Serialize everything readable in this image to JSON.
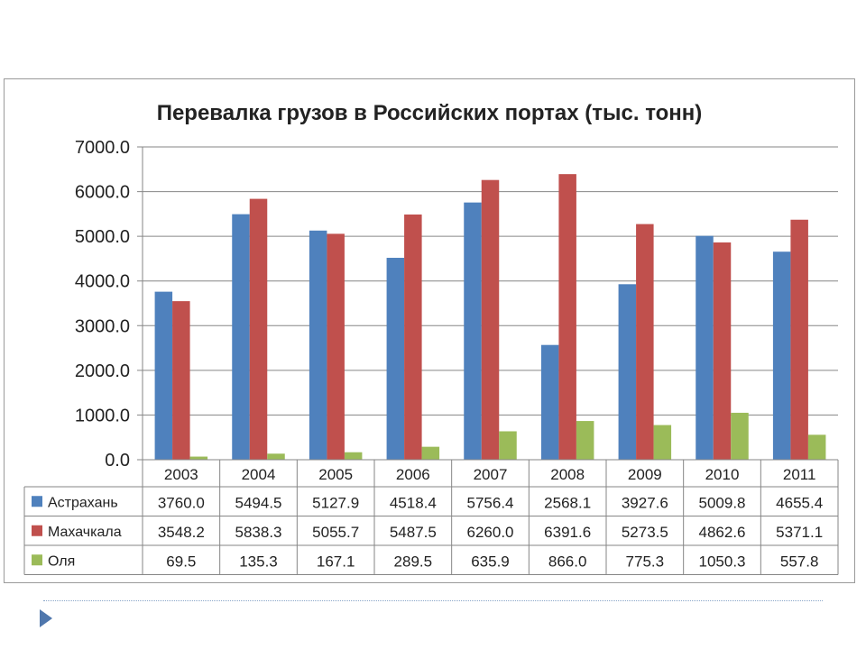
{
  "chart_data": {
    "type": "bar",
    "title": "Перевалка грузов в Российских портах (тыс. тонн)",
    "categories": [
      "2003",
      "2004",
      "2005",
      "2006",
      "2007",
      "2008",
      "2009",
      "2010",
      "2011"
    ],
    "series": [
      {
        "name": "Астрахань",
        "color": "#4f81bd",
        "values": [
          3760.0,
          5494.5,
          5127.9,
          4518.4,
          5756.4,
          2568.1,
          3927.6,
          5009.8,
          4655.4
        ]
      },
      {
        "name": "Махачкала",
        "color": "#c0504d",
        "values": [
          3548.2,
          5838.3,
          5055.7,
          5487.5,
          6260.0,
          6391.6,
          5273.5,
          4862.6,
          5371.1
        ]
      },
      {
        "name": "Оля",
        "color": "#9bbb59",
        "values": [
          69.5,
          135.3,
          167.1,
          289.5,
          635.9,
          866.0,
          775.3,
          1050.3,
          557.8
        ]
      }
    ],
    "ylim": [
      0,
      7000
    ],
    "yticks": [
      "0.0",
      "1000.0",
      "2000.0",
      "3000.0",
      "4000.0",
      "5000.0",
      "6000.0",
      "7000.0"
    ],
    "grid": true,
    "legend": "data-table",
    "data_table": {
      "rows": [
        [
          "3760.0",
          "5494.5",
          "5127.9",
          "4518.4",
          "5756.4",
          "2568.1",
          "3927.6",
          "5009.8",
          "4655.4"
        ],
        [
          "3548.2",
          "5838.3",
          "5055.7",
          "5487.5",
          "6260.0",
          "6391.6",
          "5273.5",
          "4862.6",
          "5371.1"
        ],
        [
          "69.5",
          "135.3",
          "167.1",
          "289.5",
          "635.9",
          "866.0",
          "775.3",
          "1050.3",
          "557.8"
        ]
      ]
    }
  },
  "slide": {
    "arrow_color": "#4f77ad"
  }
}
